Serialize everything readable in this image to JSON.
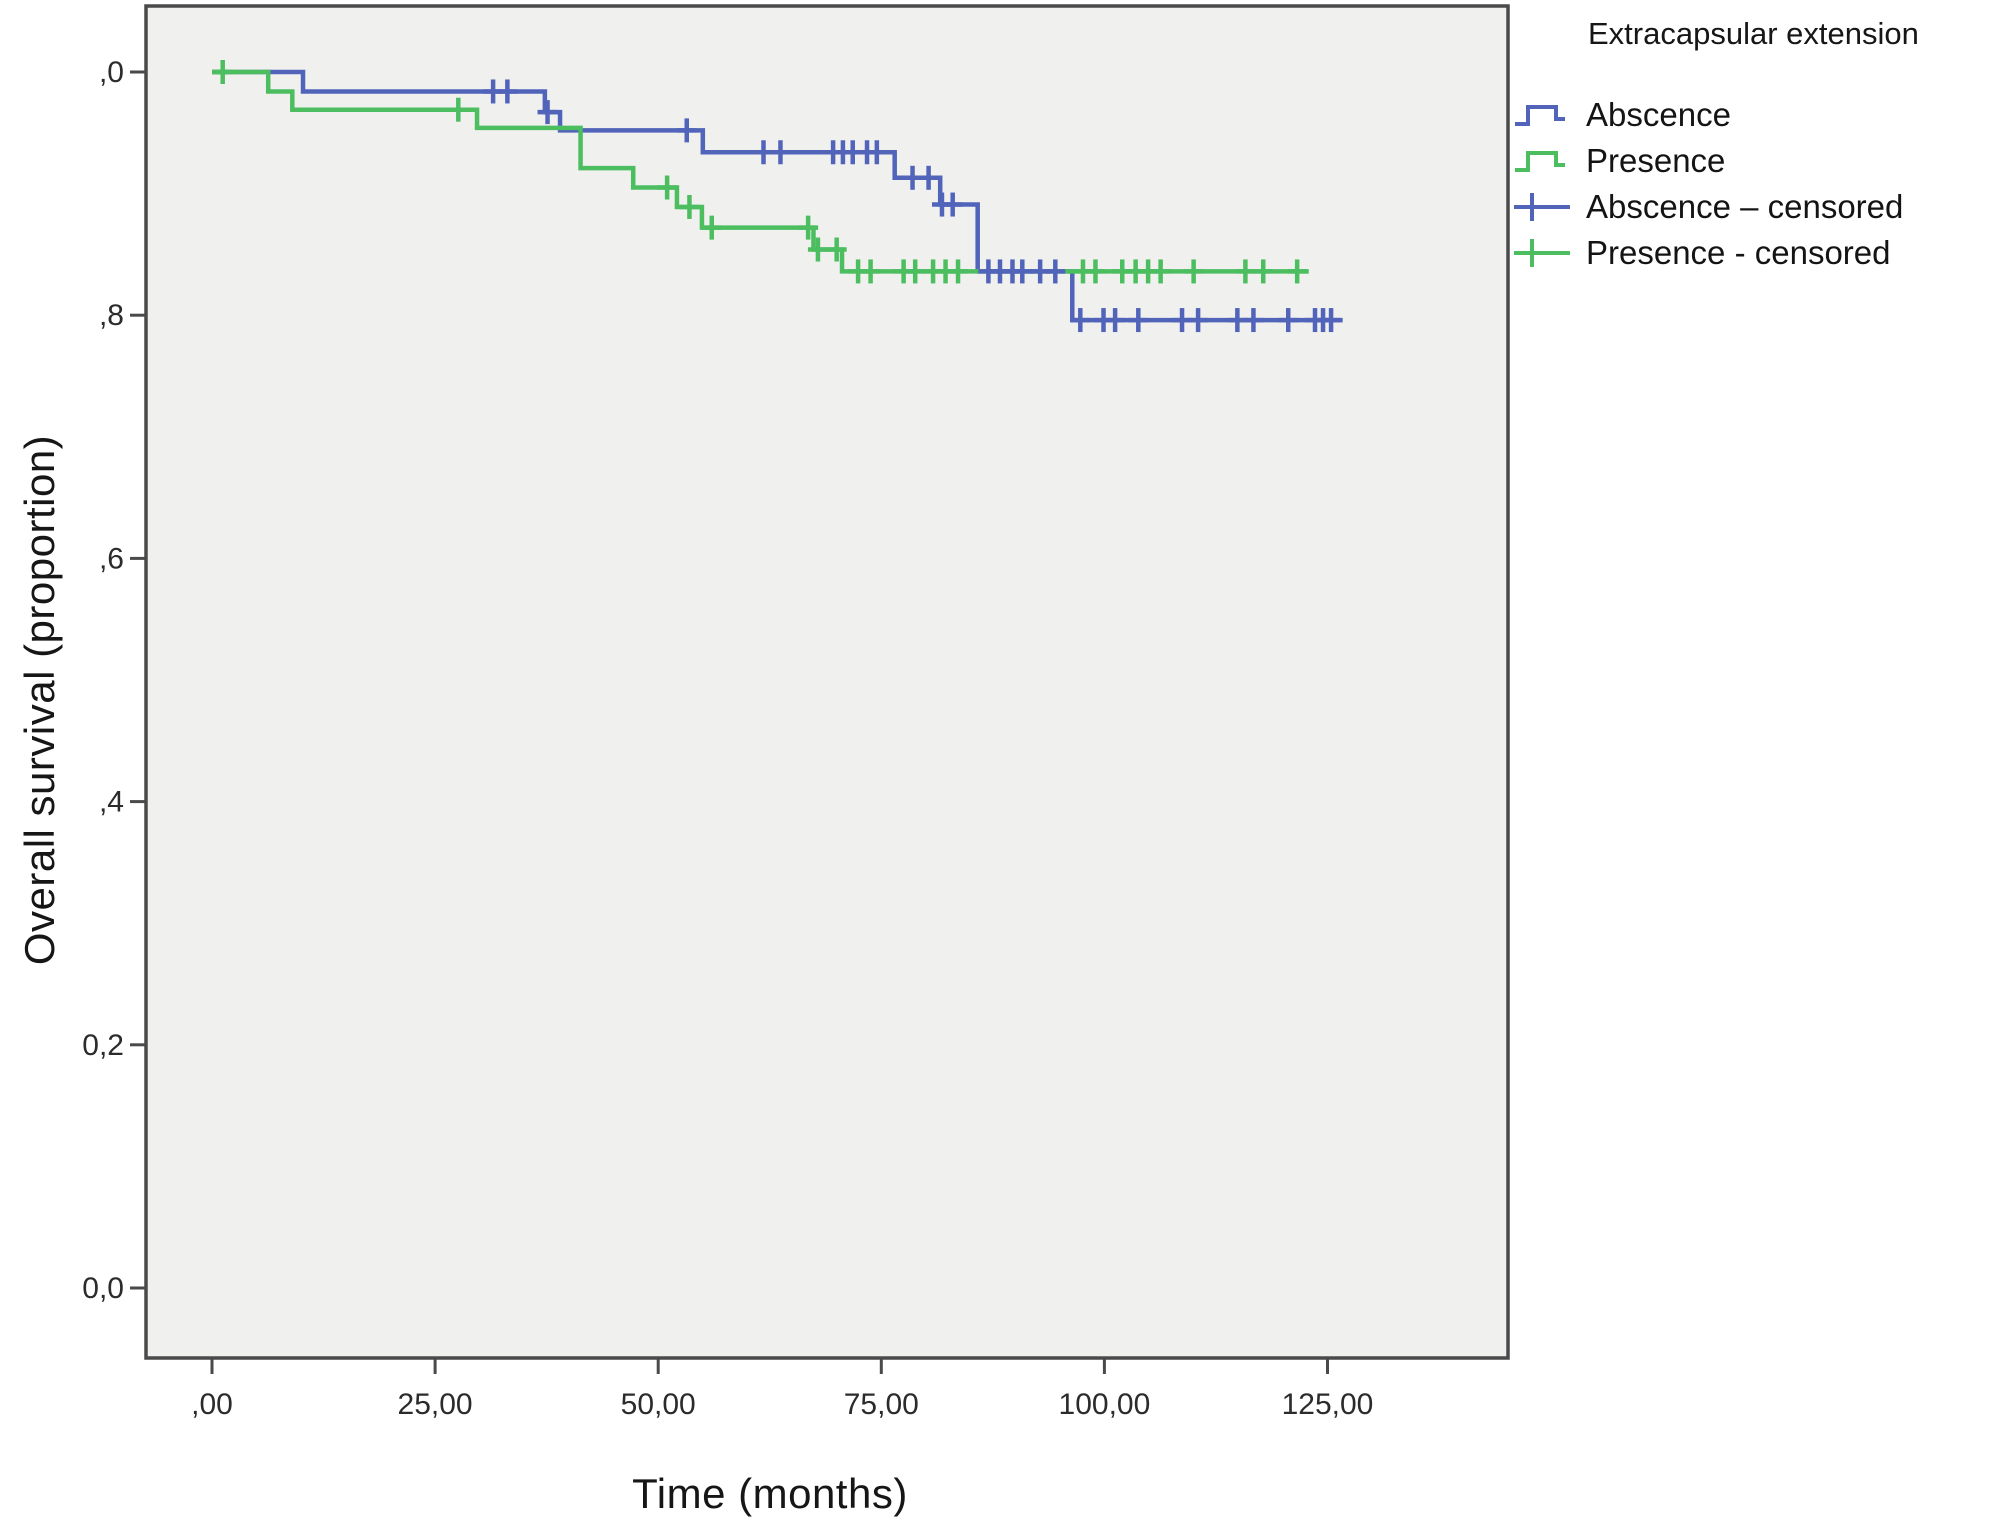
{
  "figure": {
    "xlabel": "Time (months)",
    "ylabel": "Overall survival (proportion)",
    "legend_title": "Extracapsular extension",
    "legend": {
      "items": [
        {
          "label": "Abscence",
          "type": "line",
          "color": "#5164BA"
        },
        {
          "label": "Presence",
          "type": "line",
          "color": "#4CBE60"
        },
        {
          "label": "Abscence – censored",
          "type": "censor",
          "color": "#5164BA"
        },
        {
          "label": "Presence - censored",
          "type": "censor",
          "color": "#4CBE60"
        }
      ]
    },
    "style": {
      "plot_background": "#F0F0EF",
      "frame_color": "#4A4A4A",
      "tick_text_color": "#2B2B2B",
      "blue": "#5164BA",
      "green": "#4CBE60"
    }
  },
  "chart_data": {
    "type": "line",
    "subtype": "kaplan-meier-step",
    "title": "",
    "xlabel": "Time (months)",
    "ylabel": "Overall survival (proportion)",
    "grid": false,
    "legend_position": "top-right-outside",
    "legend_title": "Extracapsular extension",
    "xlim": [
      -7.4,
      145.2
    ],
    "ylim": [
      -0.057,
      1.054
    ],
    "x_ticks": {
      "values": [
        0,
        25,
        50,
        75,
        100,
        125
      ],
      "labels": [
        ",00",
        "25,00",
        "50,00",
        "75,00",
        "100,00",
        "125,00"
      ]
    },
    "y_ticks": {
      "values": [
        1.0,
        0.8,
        0.6,
        0.4,
        0.2,
        0.0
      ],
      "labels": [
        ",0",
        ",8",
        ",6",
        ",4",
        "0,2",
        "0,0"
      ]
    },
    "series": [
      {
        "name": "Abscence",
        "type": "step",
        "color": "#5164BA",
        "end": 126.7,
        "points": [
          [
            0,
            1.0
          ],
          [
            10.2,
            0.984
          ],
          [
            37.3,
            0.967
          ],
          [
            39.0,
            0.952
          ],
          [
            55.0,
            0.934
          ],
          [
            76.5,
            0.913
          ],
          [
            81.6,
            0.891
          ],
          [
            85.8,
            0.836
          ],
          [
            96.4,
            0.796
          ]
        ]
      },
      {
        "name": "Presence",
        "type": "step",
        "color": "#4CBE60",
        "end": 122.9,
        "points": [
          [
            0,
            1.0
          ],
          [
            6.3,
            0.984
          ],
          [
            9.0,
            0.969
          ],
          [
            29.7,
            0.954
          ],
          [
            41.3,
            0.921
          ],
          [
            47.2,
            0.905
          ],
          [
            52.1,
            0.889
          ],
          [
            54.9,
            0.872
          ],
          [
            67.4,
            0.854
          ],
          [
            70.6,
            0.836
          ]
        ]
      },
      {
        "name": "Abscence – censored",
        "type": "censor",
        "color": "#5164BA",
        "points": [
          [
            31.5,
            0.984
          ],
          [
            33.1,
            0.984
          ],
          [
            37.6,
            0.967
          ],
          [
            53.2,
            0.952
          ],
          [
            61.8,
            0.934
          ],
          [
            63.7,
            0.934
          ],
          [
            69.6,
            0.934
          ],
          [
            70.7,
            0.934
          ],
          [
            71.8,
            0.934
          ],
          [
            73.4,
            0.934
          ],
          [
            74.5,
            0.934
          ],
          [
            78.5,
            0.913
          ],
          [
            80.3,
            0.913
          ],
          [
            81.8,
            0.891
          ],
          [
            83.0,
            0.891
          ],
          [
            87.0,
            0.836
          ],
          [
            88.3,
            0.836
          ],
          [
            89.7,
            0.836
          ],
          [
            90.8,
            0.836
          ],
          [
            92.8,
            0.836
          ],
          [
            94.5,
            0.836
          ],
          [
            97.3,
            0.796
          ],
          [
            99.9,
            0.796
          ],
          [
            101.2,
            0.796
          ],
          [
            103.8,
            0.796
          ],
          [
            108.7,
            0.796
          ],
          [
            110.5,
            0.796
          ],
          [
            114.9,
            0.796
          ],
          [
            116.7,
            0.796
          ],
          [
            120.6,
            0.796
          ],
          [
            123.6,
            0.796
          ],
          [
            124.5,
            0.796
          ],
          [
            125.4,
            0.796
          ]
        ]
      },
      {
        "name": "Presence - censored",
        "type": "censor",
        "color": "#4CBE60",
        "points": [
          [
            1.2,
            1.0
          ],
          [
            27.6,
            0.969
          ],
          [
            51.0,
            0.905
          ],
          [
            53.5,
            0.889
          ],
          [
            56.0,
            0.872
          ],
          [
            66.8,
            0.872
          ],
          [
            67.9,
            0.854
          ],
          [
            70.0,
            0.854
          ],
          [
            72.4,
            0.836
          ],
          [
            73.8,
            0.836
          ],
          [
            77.5,
            0.836
          ],
          [
            78.8,
            0.836
          ],
          [
            80.8,
            0.836
          ],
          [
            82.2,
            0.836
          ],
          [
            83.6,
            0.836
          ],
          [
            97.6,
            0.836
          ],
          [
            99.0,
            0.836
          ],
          [
            102.0,
            0.836
          ],
          [
            103.5,
            0.836
          ],
          [
            104.9,
            0.836
          ],
          [
            106.3,
            0.836
          ],
          [
            110.0,
            0.836
          ],
          [
            115.8,
            0.836
          ],
          [
            117.8,
            0.836
          ],
          [
            121.6,
            0.836
          ]
        ]
      }
    ]
  }
}
